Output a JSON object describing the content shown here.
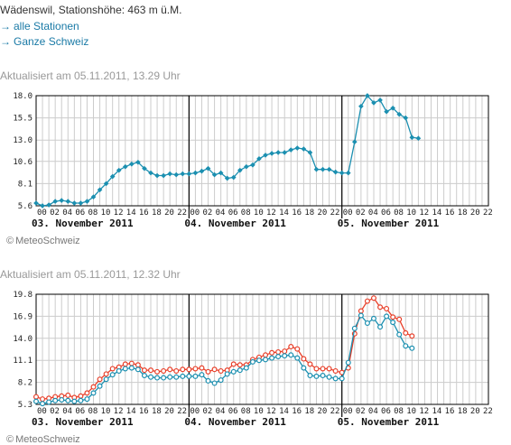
{
  "header": {
    "station_line": "Wädenswil, Stationshöhe: 463 m ü.M.",
    "links": [
      {
        "arrow": "→",
        "label": "alle Stationen"
      },
      {
        "arrow": "→",
        "label": "Ganze Schweiz"
      }
    ]
  },
  "chart1": {
    "updated": "Aktualisiert am 05.11.2011, 13.29 Uhr",
    "credit_symbol": "©",
    "credit": "MeteoSchweiz"
  },
  "chart2": {
    "updated": "Aktualisiert am 05.11.2011, 12.32 Uhr",
    "credit_symbol": "©",
    "credit": "MeteoSchweiz"
  },
  "colors": {
    "series_blue": "#1b8fb0",
    "series_red": "#e8402a",
    "grid": "#cccccc",
    "axis": "#000000"
  },
  "chart_data": [
    {
      "type": "line",
      "title": "",
      "ylim": [
        5.6,
        18.0
      ],
      "yticks": [
        5.6,
        8.1,
        10.6,
        13.0,
        15.5,
        18.0
      ],
      "ytick_labels": [
        "5.6",
        "8.1",
        "10.6",
        "13.0",
        "15.5",
        "18.0"
      ],
      "xlim": [
        0,
        71
      ],
      "hour_ticks": [
        "00",
        "02",
        "04",
        "06",
        "08",
        "10",
        "12",
        "14",
        "16",
        "18",
        "20",
        "22",
        "00",
        "02",
        "04",
        "06",
        "08",
        "10",
        "12",
        "14",
        "16",
        "18",
        "20",
        "22",
        "00",
        "02",
        "04",
        "06",
        "08",
        "10",
        "12",
        "14",
        "16",
        "18",
        "20",
        "22"
      ],
      "day_labels": [
        "03. November 2011",
        "04. November 2011",
        "05. November 2011"
      ],
      "grid": true,
      "series": [
        {
          "color": "#1b8fb0",
          "x": [
            0,
            1,
            2,
            3,
            4,
            5,
            6,
            7,
            8,
            9,
            10,
            11,
            12,
            13,
            14,
            15,
            16,
            17,
            18,
            19,
            20,
            21,
            22,
            23,
            24,
            25,
            26,
            27,
            28,
            29,
            30,
            31,
            32,
            33,
            34,
            35,
            36,
            37,
            38,
            39,
            40,
            41,
            42,
            43,
            44,
            45,
            46,
            47,
            48,
            49,
            50,
            51,
            52,
            53,
            54,
            55,
            56,
            57,
            58,
            59,
            60
          ],
          "y": [
            5.9,
            5.6,
            5.7,
            6.1,
            6.2,
            6.1,
            5.9,
            5.9,
            6.1,
            6.6,
            7.4,
            8.1,
            8.9,
            9.6,
            10.0,
            10.3,
            10.5,
            9.8,
            9.3,
            9.0,
            9.0,
            9.2,
            9.1,
            9.2,
            9.2,
            9.3,
            9.5,
            9.8,
            9.1,
            9.3,
            8.7,
            8.8,
            9.6,
            10.0,
            10.2,
            10.9,
            11.3,
            11.5,
            11.6,
            11.6,
            11.9,
            12.1,
            12.0,
            11.6,
            9.7,
            9.7,
            9.7,
            9.4,
            9.3,
            9.3,
            12.8,
            16.8,
            18.0,
            17.2,
            17.5,
            16.2,
            16.6,
            15.9,
            15.5,
            13.3,
            13.2
          ]
        }
      ]
    },
    {
      "type": "line",
      "title": "",
      "ylim": [
        5.3,
        19.8
      ],
      "yticks": [
        5.3,
        8.2,
        11.1,
        14.0,
        16.9,
        19.8
      ],
      "ytick_labels": [
        "5.3",
        "8.2",
        "11.1",
        "14.0",
        "16.9",
        "19.8"
      ],
      "xlim": [
        0,
        71
      ],
      "hour_ticks": [
        "00",
        "02",
        "04",
        "06",
        "08",
        "10",
        "12",
        "14",
        "16",
        "18",
        "20",
        "22",
        "00",
        "02",
        "04",
        "06",
        "08",
        "10",
        "12",
        "14",
        "16",
        "18",
        "20",
        "22",
        "00",
        "02",
        "04",
        "06",
        "08",
        "10",
        "12",
        "14",
        "16",
        "18",
        "20",
        "22"
      ],
      "day_labels": [
        "03. November 2011",
        "04. November 2011",
        "05. November 2011"
      ],
      "grid": true,
      "series": [
        {
          "color": "#e8402a",
          "x": [
            0,
            1,
            2,
            3,
            4,
            5,
            6,
            7,
            8,
            9,
            10,
            11,
            12,
            13,
            14,
            15,
            16,
            17,
            18,
            19,
            20,
            21,
            22,
            23,
            24,
            25,
            26,
            27,
            28,
            29,
            30,
            31,
            32,
            33,
            34,
            35,
            36,
            37,
            38,
            39,
            40,
            41,
            42,
            43,
            44,
            45,
            46,
            47,
            48,
            49,
            50,
            51,
            52,
            53,
            54,
            55,
            56,
            57,
            58,
            59
          ],
          "y": [
            6.3,
            6.0,
            6.1,
            6.3,
            6.4,
            6.5,
            6.2,
            6.4,
            6.8,
            7.6,
            8.6,
            9.3,
            10.0,
            10.2,
            10.6,
            10.7,
            10.5,
            9.8,
            9.8,
            9.6,
            9.7,
            9.9,
            9.7,
            9.9,
            9.9,
            10.0,
            10.1,
            9.6,
            9.9,
            9.7,
            9.8,
            10.6,
            10.5,
            10.5,
            11.2,
            11.5,
            11.8,
            12.1,
            12.2,
            12.3,
            12.9,
            12.6,
            11.3,
            10.6,
            10.0,
            10.0,
            10.0,
            9.7,
            9.5,
            10.1,
            14.6,
            17.6,
            18.9,
            19.3,
            18.1,
            17.9,
            16.8,
            16.5,
            14.7,
            14.3
          ]
        },
        {
          "color": "#1b8fb0",
          "x": [
            0,
            1,
            2,
            3,
            4,
            5,
            6,
            7,
            8,
            9,
            10,
            11,
            12,
            13,
            14,
            15,
            16,
            17,
            18,
            19,
            20,
            21,
            22,
            23,
            24,
            25,
            26,
            27,
            28,
            29,
            30,
            31,
            32,
            33,
            34,
            35,
            36,
            37,
            38,
            39,
            40,
            41,
            42,
            43,
            44,
            45,
            46,
            47,
            48,
            49,
            50,
            51,
            52,
            53,
            54,
            55,
            56,
            57,
            58,
            59
          ],
          "y": [
            5.7,
            5.4,
            5.6,
            5.8,
            5.9,
            5.8,
            5.7,
            5.8,
            6.0,
            6.8,
            7.7,
            8.6,
            9.2,
            9.7,
            10.0,
            10.1,
            9.9,
            9.1,
            8.9,
            8.8,
            8.8,
            8.9,
            8.9,
            9.0,
            9.0,
            9.0,
            9.2,
            8.4,
            8.1,
            8.5,
            9.3,
            9.6,
            9.8,
            10.1,
            10.9,
            11.1,
            11.2,
            11.4,
            11.6,
            11.7,
            11.8,
            11.4,
            10.1,
            9.1,
            9.0,
            9.1,
            8.9,
            8.7,
            8.7,
            10.8,
            15.3,
            17.0,
            16.0,
            16.6,
            15.5,
            16.9,
            16.1,
            14.5,
            13.0,
            12.7
          ]
        }
      ]
    }
  ]
}
